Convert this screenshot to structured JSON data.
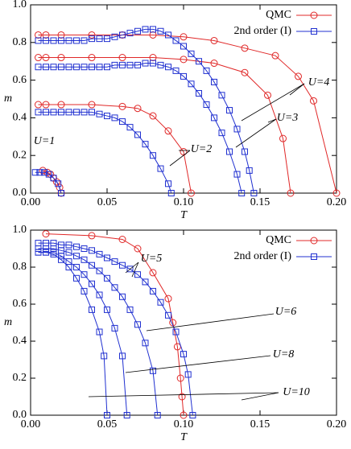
{
  "chart_data": [
    {
      "type": "line",
      "x_label": "T",
      "y_label": "m",
      "xlim": [
        0,
        0.2
      ],
      "ylim": [
        0,
        1
      ],
      "xticks": [
        {
          "value": 0,
          "label": "0.00"
        },
        {
          "value": 0.05,
          "label": "0.05"
        },
        {
          "value": 0.1,
          "label": "0.10"
        },
        {
          "value": 0.15,
          "label": "0.15"
        },
        {
          "value": 0.2,
          "label": "0.20"
        }
      ],
      "yticks": [
        {
          "value": 0,
          "label": "0.0"
        },
        {
          "value": 0.2,
          "label": "0.2"
        },
        {
          "value": 0.4,
          "label": "0.4"
        },
        {
          "value": 0.6,
          "label": "0.6"
        },
        {
          "value": 0.8,
          "label": "0.8"
        },
        {
          "value": 1,
          "label": "1.0"
        }
      ],
      "legend": [
        {
          "name": "QMC",
          "color": "#e02828",
          "marker": "circle"
        },
        {
          "name": "2nd order (I)",
          "color": "#2030d0",
          "marker": "square"
        }
      ],
      "series": [
        {
          "legend": 0,
          "x": [
            0.005,
            0.01,
            0.02,
            0.04,
            0.06,
            0.08,
            0.1,
            0.12,
            0.14,
            0.16,
            0.175,
            0.185,
            0.2
          ],
          "values": [
            0.84,
            0.84,
            0.84,
            0.84,
            0.84,
            0.84,
            0.83,
            0.81,
            0.77,
            0.73,
            0.62,
            0.49,
            0
          ]
        },
        {
          "legend": 0,
          "x": [
            0.005,
            0.01,
            0.02,
            0.04,
            0.06,
            0.08,
            0.1,
            0.12,
            0.14,
            0.155,
            0.165,
            0.17
          ],
          "values": [
            0.72,
            0.72,
            0.72,
            0.72,
            0.72,
            0.72,
            0.71,
            0.69,
            0.64,
            0.52,
            0.29,
            0
          ]
        },
        {
          "legend": 0,
          "x": [
            0.005,
            0.01,
            0.02,
            0.04,
            0.06,
            0.07,
            0.08,
            0.09,
            0.1,
            0.105
          ],
          "values": [
            0.47,
            0.47,
            0.47,
            0.47,
            0.46,
            0.45,
            0.41,
            0.33,
            0.22,
            0
          ]
        },
        {
          "legend": 0,
          "x": [
            0.008,
            0.011,
            0.013,
            0.015,
            0.017,
            0.019,
            0.02
          ],
          "values": [
            0.12,
            0.11,
            0.1,
            0.08,
            0.06,
            0.03,
            0
          ]
        },
        {
          "legend": 1,
          "x": [
            0.005,
            0.01,
            0.015,
            0.02,
            0.025,
            0.03,
            0.035,
            0.04,
            0.045,
            0.05,
            0.055,
            0.06,
            0.065,
            0.07,
            0.075,
            0.08,
            0.085,
            0.09,
            0.095,
            0.1,
            0.105,
            0.11,
            0.115,
            0.12,
            0.125,
            0.13,
            0.135,
            0.14,
            0.143,
            0.146
          ],
          "values": [
            0.81,
            0.81,
            0.81,
            0.81,
            0.81,
            0.81,
            0.81,
            0.82,
            0.82,
            0.82,
            0.83,
            0.84,
            0.85,
            0.86,
            0.87,
            0.87,
            0.86,
            0.84,
            0.81,
            0.78,
            0.74,
            0.7,
            0.65,
            0.59,
            0.52,
            0.44,
            0.34,
            0.22,
            0.12,
            0
          ]
        },
        {
          "legend": 1,
          "x": [
            0.005,
            0.01,
            0.015,
            0.02,
            0.025,
            0.03,
            0.035,
            0.04,
            0.045,
            0.05,
            0.055,
            0.06,
            0.065,
            0.07,
            0.075,
            0.08,
            0.085,
            0.09,
            0.095,
            0.1,
            0.105,
            0.11,
            0.115,
            0.12,
            0.125,
            0.13,
            0.135,
            0.138
          ],
          "values": [
            0.67,
            0.67,
            0.67,
            0.67,
            0.67,
            0.67,
            0.67,
            0.67,
            0.67,
            0.67,
            0.68,
            0.68,
            0.68,
            0.68,
            0.69,
            0.69,
            0.68,
            0.67,
            0.65,
            0.62,
            0.58,
            0.53,
            0.47,
            0.4,
            0.32,
            0.22,
            0.1,
            0
          ]
        },
        {
          "legend": 1,
          "x": [
            0.005,
            0.01,
            0.015,
            0.02,
            0.025,
            0.03,
            0.035,
            0.04,
            0.045,
            0.05,
            0.055,
            0.06,
            0.065,
            0.07,
            0.075,
            0.08,
            0.085,
            0.09,
            0.092
          ],
          "values": [
            0.43,
            0.43,
            0.43,
            0.43,
            0.43,
            0.43,
            0.43,
            0.43,
            0.42,
            0.41,
            0.4,
            0.38,
            0.35,
            0.31,
            0.26,
            0.2,
            0.13,
            0.05,
            0
          ]
        },
        {
          "legend": 1,
          "x": [
            0.003,
            0.006,
            0.009,
            0.012,
            0.015,
            0.018,
            0.02
          ],
          "values": [
            0.11,
            0.11,
            0.11,
            0.1,
            0.08,
            0.05,
            0
          ]
        }
      ],
      "annotations": [
        "U=1",
        "U=2",
        "U=3",
        "U=4"
      ]
    },
    {
      "type": "line",
      "x_label": "T",
      "y_label": "m",
      "xlim": [
        0,
        0.2
      ],
      "ylim": [
        0,
        1
      ],
      "xticks": [
        {
          "value": 0,
          "label": "0.00"
        },
        {
          "value": 0.05,
          "label": "0.05"
        },
        {
          "value": 0.1,
          "label": "0.10"
        },
        {
          "value": 0.15,
          "label": "0.15"
        },
        {
          "value": 0.2,
          "label": "0.20"
        }
      ],
      "yticks": [
        {
          "value": 0,
          "label": "0.0"
        },
        {
          "value": 0.2,
          "label": "0.2"
        },
        {
          "value": 0.4,
          "label": "0.4"
        },
        {
          "value": 0.6,
          "label": "0.6"
        },
        {
          "value": 0.8,
          "label": "0.8"
        },
        {
          "value": 1,
          "label": "1.0"
        }
      ],
      "legend": [
        {
          "name": "QMC",
          "color": "#e02828",
          "marker": "circle"
        },
        {
          "name": "2nd order (I)",
          "color": "#2030d0",
          "marker": "square"
        }
      ],
      "series": [
        {
          "legend": 0,
          "x": [
            0.01,
            0.04,
            0.06,
            0.07,
            0.08,
            0.09,
            0.093,
            0.096,
            0.098,
            0.099,
            0.1
          ],
          "values": [
            0.98,
            0.97,
            0.95,
            0.9,
            0.77,
            0.63,
            0.5,
            0.37,
            0.2,
            0.1,
            0
          ]
        },
        {
          "legend": 1,
          "x": [
            0.005,
            0.01,
            0.015,
            0.02,
            0.025,
            0.03,
            0.035,
            0.04,
            0.045,
            0.05,
            0.055,
            0.06,
            0.065,
            0.07,
            0.075,
            0.08,
            0.085,
            0.09,
            0.095,
            0.1,
            0.103,
            0.106
          ],
          "values": [
            0.93,
            0.93,
            0.93,
            0.92,
            0.92,
            0.91,
            0.9,
            0.89,
            0.87,
            0.85,
            0.83,
            0.81,
            0.79,
            0.76,
            0.72,
            0.67,
            0.61,
            0.54,
            0.45,
            0.33,
            0.22,
            0
          ]
        },
        {
          "legend": 1,
          "x": [
            0.005,
            0.01,
            0.015,
            0.02,
            0.025,
            0.03,
            0.035,
            0.04,
            0.045,
            0.05,
            0.055,
            0.06,
            0.065,
            0.07,
            0.075,
            0.08,
            0.083
          ],
          "values": [
            0.9,
            0.9,
            0.9,
            0.89,
            0.88,
            0.86,
            0.84,
            0.81,
            0.78,
            0.74,
            0.69,
            0.64,
            0.57,
            0.49,
            0.39,
            0.24,
            0
          ]
        },
        {
          "legend": 1,
          "x": [
            0.005,
            0.01,
            0.015,
            0.02,
            0.025,
            0.03,
            0.035,
            0.04,
            0.045,
            0.05,
            0.055,
            0.06,
            0.063
          ],
          "values": [
            0.88,
            0.88,
            0.88,
            0.86,
            0.83,
            0.8,
            0.76,
            0.71,
            0.65,
            0.57,
            0.47,
            0.32,
            0
          ]
        },
        {
          "legend": 1,
          "x": [
            0.005,
            0.01,
            0.015,
            0.02,
            0.025,
            0.03,
            0.035,
            0.04,
            0.045,
            0.048,
            0.05
          ],
          "values": [
            0.88,
            0.88,
            0.87,
            0.84,
            0.8,
            0.74,
            0.67,
            0.57,
            0.45,
            0.32,
            0
          ]
        }
      ],
      "annotations": [
        "U=5",
        "U=6",
        "U=8",
        "U=10"
      ]
    }
  ]
}
